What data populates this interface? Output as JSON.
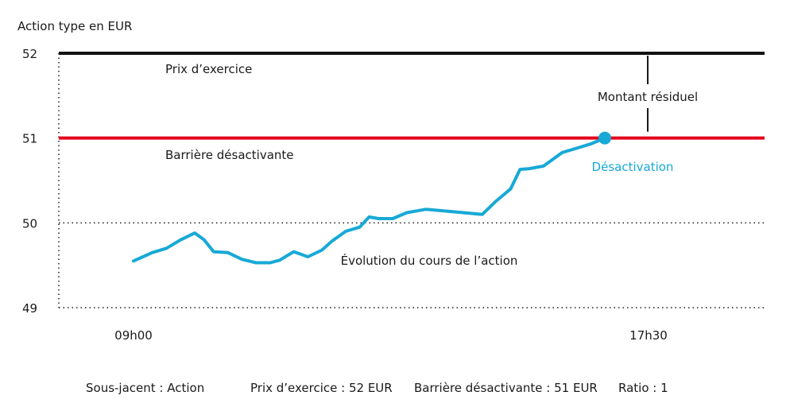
{
  "chart_data": {
    "type": "line",
    "ylabel": "Action type en EUR",
    "ylim": [
      49,
      52
    ],
    "yticks": [
      "49",
      "50",
      "51",
      "52"
    ],
    "x_labels": [
      "09h00",
      "17h30"
    ],
    "grid": "dotted",
    "strike": {
      "value": 52,
      "label": "Prix d’exercice",
      "color": "#111111"
    },
    "barrier": {
      "value": 51,
      "label": "Barrière désactivante",
      "color": "#e3001b"
    },
    "series": [
      {
        "label": "Évolution du cours de l’action",
        "color": "#17a9d6",
        "x": [
          0,
          0.02,
          0.04,
          0.07,
          0.1,
          0.13,
          0.15,
          0.17,
          0.2,
          0.23,
          0.26,
          0.29,
          0.31,
          0.34,
          0.37,
          0.4,
          0.42,
          0.45,
          0.48,
          0.5,
          0.52,
          0.55,
          0.58,
          0.62,
          0.66,
          0.7,
          0.74,
          0.77,
          0.8,
          0.82,
          0.84,
          0.87,
          0.89,
          0.91,
          0.94,
          0.97,
          1.0
        ],
        "y": [
          49.55,
          49.6,
          49.65,
          49.7,
          49.8,
          49.88,
          49.8,
          49.66,
          49.65,
          49.57,
          49.53,
          49.53,
          49.56,
          49.66,
          49.6,
          49.68,
          49.78,
          49.9,
          49.95,
          50.07,
          50.05,
          50.05,
          50.12,
          50.16,
          50.14,
          50.12,
          50.1,
          50.26,
          50.4,
          50.63,
          50.64,
          50.67,
          50.75,
          50.83,
          50.88,
          50.93,
          51.0
        ]
      }
    ],
    "annotations": {
      "knockout_label": "Désactivation",
      "residual_label": "Montant résiduel"
    }
  },
  "footer": {
    "underlying": "Sous-jacent : Action",
    "strike": "Prix d’exercice : 52 EUR",
    "barrier": "Barrière désactivante : 51 EUR",
    "ratio": "Ratio : 1"
  }
}
